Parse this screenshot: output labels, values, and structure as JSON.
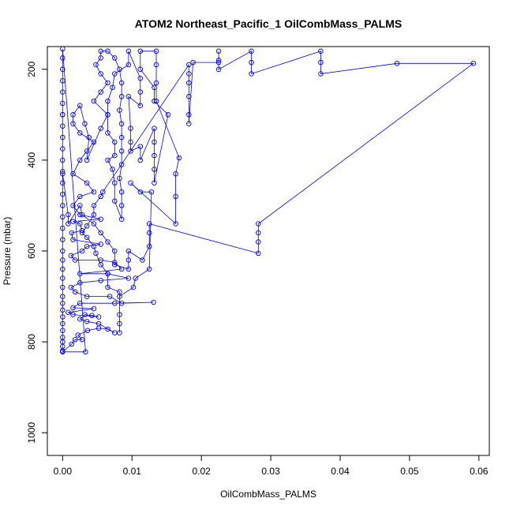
{
  "chart_data": {
    "type": "scatter",
    "title": "ATOM2 Northeast_Pacific_1 OilCombMass_PALMS",
    "xlabel": "OilCombMass_PALMS",
    "ylabel": "Pressure (mbar)",
    "xlim": [
      -0.0022,
      0.0615
    ],
    "ylim": [
      1050,
      150
    ],
    "y_inverted": true,
    "grid": false,
    "legend": "none",
    "xticks": [
      0.0,
      0.01,
      0.02,
      0.03,
      0.04,
      0.05,
      0.06
    ],
    "xtick_labels": [
      "0.00",
      "0.01",
      "0.02",
      "0.03",
      "0.04",
      "0.05",
      "0.06"
    ],
    "yticks": [
      200,
      400,
      600,
      800,
      1000
    ],
    "ytick_labels": [
      "200",
      "400",
      "600",
      "800",
      "1000"
    ],
    "series": [
      {
        "color": "#0000ff",
        "marker": "open-circle",
        "connected": true,
        "points": [
          [
            0.0,
            820
          ],
          [
            0.0,
            810
          ],
          [
            0.0,
            800
          ],
          [
            0.0,
            790
          ],
          [
            0.0,
            775
          ],
          [
            0.0,
            760
          ],
          [
            0.0,
            745
          ],
          [
            0.0,
            730
          ],
          [
            0.0,
            715
          ],
          [
            0.0,
            700
          ],
          [
            0.0,
            680
          ],
          [
            0.0,
            660
          ],
          [
            0.0,
            640
          ],
          [
            0.0,
            620
          ],
          [
            0.0,
            600
          ],
          [
            0.0,
            575
          ],
          [
            0.0,
            550
          ],
          [
            0.0,
            525
          ],
          [
            0.0,
            500
          ],
          [
            0.0,
            475
          ],
          [
            0.0,
            450
          ],
          [
            0.0,
            425
          ],
          [
            0.0,
            400
          ],
          [
            0.0,
            375
          ],
          [
            0.0,
            350
          ],
          [
            0.0,
            325
          ],
          [
            0.0,
            300
          ],
          [
            0.0,
            275
          ],
          [
            0.0,
            250
          ],
          [
            0.0,
            225
          ],
          [
            0.0,
            200
          ],
          [
            0.0,
            175
          ],
          [
            0.0,
            155
          ],
          [
            0.0033,
            822
          ],
          [
            0.0,
            822
          ],
          [
            0.0013,
            805
          ],
          [
            0.0018,
            795
          ],
          [
            0.0028,
            795
          ],
          [
            0.0022,
            785
          ],
          [
            0.0036,
            775
          ],
          [
            0.0052,
            770
          ],
          [
            0.0065,
            772
          ],
          [
            0.0075,
            780
          ],
          [
            0.0052,
            760
          ],
          [
            0.0035,
            755
          ],
          [
            0.0025,
            750
          ],
          [
            0.0032,
            740
          ],
          [
            0.0042,
            742
          ],
          [
            0.0052,
            745
          ],
          [
            0.0015,
            740
          ],
          [
            0.0008,
            735
          ],
          [
            0.0045,
            727
          ],
          [
            0.0015,
            725
          ],
          [
            0.0025,
            715
          ],
          [
            0.0075,
            715
          ],
          [
            0.0131,
            713
          ],
          [
            0.0085,
            715
          ],
          [
            0.0068,
            700
          ],
          [
            0.0035,
            700
          ],
          [
            0.0018,
            690
          ],
          [
            0.0012,
            680
          ],
          [
            0.0025,
            670
          ],
          [
            0.0055,
            665
          ],
          [
            0.0095,
            660
          ],
          [
            0.0065,
            650
          ],
          [
            0.0025,
            650
          ],
          [
            0.0085,
            640
          ],
          [
            0.0075,
            625
          ],
          [
            0.0055,
            620
          ],
          [
            0.0018,
            620
          ],
          [
            0.0012,
            610
          ],
          [
            0.0028,
            600
          ],
          [
            0.0035,
            590
          ],
          [
            0.0055,
            585
          ],
          [
            0.0015,
            575
          ],
          [
            0.0013,
            560
          ],
          [
            0.0028,
            555
          ],
          [
            0.0025,
            540
          ],
          [
            0.0015,
            535
          ],
          [
            0.0055,
            530
          ],
          [
            0.0025,
            520
          ],
          [
            0.0015,
            500
          ],
          [
            0.0025,
            480
          ],
          [
            0.0045,
            470
          ],
          [
            0.0035,
            450
          ],
          [
            0.0015,
            430
          ],
          [
            0.0025,
            400
          ],
          [
            0.0035,
            380
          ],
          [
            0.0045,
            360
          ],
          [
            0.0025,
            340
          ],
          [
            0.0015,
            320
          ],
          [
            0.0015,
            300
          ],
          [
            0.0025,
            280
          ],
          [
            0.0032,
            320
          ],
          [
            0.0038,
            350
          ],
          [
            0.0035,
            400
          ],
          [
            0.0055,
            330
          ],
          [
            0.0065,
            300
          ],
          [
            0.0045,
            270
          ],
          [
            0.0055,
            250
          ],
          [
            0.0065,
            230
          ],
          [
            0.0055,
            210
          ],
          [
            0.0048,
            190
          ],
          [
            0.0055,
            175
          ],
          [
            0.0055,
            160
          ],
          [
            0.0065,
            160
          ],
          [
            0.0075,
            175
          ],
          [
            0.0082,
            200
          ],
          [
            0.0085,
            230
          ],
          [
            0.0085,
            260
          ],
          [
            0.0082,
            290
          ],
          [
            0.0085,
            320
          ],
          [
            0.0085,
            350
          ],
          [
            0.0085,
            380
          ],
          [
            0.0085,
            410
          ],
          [
            0.0082,
            440
          ],
          [
            0.0085,
            470
          ],
          [
            0.0085,
            500
          ],
          [
            0.0085,
            530
          ],
          [
            0.0075,
            490
          ],
          [
            0.0075,
            450
          ],
          [
            0.0072,
            420
          ],
          [
            0.0065,
            400
          ],
          [
            0.0075,
            390
          ],
          [
            0.0075,
            360
          ],
          [
            0.0065,
            340
          ],
          [
            0.0065,
            300
          ],
          [
            0.0065,
            270
          ],
          [
            0.0072,
            240
          ],
          [
            0.0075,
            210
          ],
          [
            0.0095,
            190
          ],
          [
            0.0095,
            160
          ],
          [
            0.0112,
            220
          ],
          [
            0.0112,
            250
          ],
          [
            0.0112,
            280
          ],
          [
            0.0095,
            260
          ],
          [
            0.0098,
            330
          ],
          [
            0.0098,
            360
          ],
          [
            0.0098,
            380
          ],
          [
            0.0112,
            370
          ],
          [
            0.0112,
            400
          ],
          [
            0.0132,
            330
          ],
          [
            0.0132,
            360
          ],
          [
            0.0132,
            390
          ],
          [
            0.0132,
            420
          ],
          [
            0.0132,
            450
          ],
          [
            0.0152,
            300
          ],
          [
            0.0132,
            270
          ],
          [
            0.0132,
            240
          ],
          [
            0.0112,
            200
          ],
          [
            0.0112,
            160
          ],
          [
            0.0135,
            160
          ],
          [
            0.0135,
            190
          ],
          [
            0.0135,
            230
          ],
          [
            0.0135,
            270
          ],
          [
            0.0168,
            395
          ],
          [
            0.0163,
            430
          ],
          [
            0.0163,
            480
          ],
          [
            0.0163,
            540
          ],
          [
            0.0098,
            450
          ],
          [
            0.0112,
            470
          ],
          [
            0.0128,
            470
          ],
          [
            0.0125,
            640
          ],
          [
            0.0105,
            660
          ],
          [
            0.0102,
            680
          ],
          [
            0.0082,
            700
          ],
          [
            0.0082,
            740
          ],
          [
            0.0082,
            760
          ],
          [
            0.0082,
            780
          ],
          [
            0.0082,
            690
          ],
          [
            0.0065,
            680
          ],
          [
            0.0065,
            650
          ],
          [
            0.0055,
            630
          ],
          [
            0.0048,
            605
          ],
          [
            0.0045,
            590
          ],
          [
            0.0035,
            570
          ],
          [
            0.0028,
            560
          ],
          [
            0.0035,
            545
          ],
          [
            0.0045,
            520
          ],
          [
            0.0045,
            500
          ],
          [
            0.0055,
            480
          ],
          [
            0.0058,
            470
          ],
          [
            0.0182,
            190
          ],
          [
            0.0182,
            210
          ],
          [
            0.0182,
            230
          ],
          [
            0.0182,
            260
          ],
          [
            0.0182,
            300
          ],
          [
            0.0182,
            320
          ],
          [
            0.0188,
            185
          ],
          [
            0.0225,
            185
          ],
          [
            0.0225,
            160
          ],
          [
            0.0225,
            180
          ],
          [
            0.0225,
            200
          ],
          [
            0.0272,
            160
          ],
          [
            0.0272,
            185
          ],
          [
            0.0272,
            210
          ],
          [
            0.0372,
            160
          ],
          [
            0.0372,
            185
          ],
          [
            0.0372,
            210
          ],
          [
            0.0482,
            187
          ],
          [
            0.0592,
            187
          ],
          [
            0.0282,
            540
          ],
          [
            0.0282,
            560
          ],
          [
            0.0282,
            580
          ],
          [
            0.0282,
            605
          ],
          [
            0.0125,
            540
          ],
          [
            0.0125,
            560
          ],
          [
            0.0125,
            590
          ],
          [
            0.0115,
            620
          ],
          [
            0.0095,
            600
          ],
          [
            0.0095,
            620
          ],
          [
            0.0095,
            640
          ],
          [
            0.0075,
            630
          ],
          [
            0.0075,
            600
          ],
          [
            0.0065,
            580
          ],
          [
            0.0055,
            560
          ],
          [
            0.0045,
            540
          ],
          [
            0.0028,
            520
          ],
          [
            0.0025,
            500
          ],
          [
            0.0008,
            540
          ],
          [
            0.0008,
            520
          ],
          [
            0.0,
            430
          ],
          [
            0.0,
            300
          ]
        ]
      }
    ]
  }
}
